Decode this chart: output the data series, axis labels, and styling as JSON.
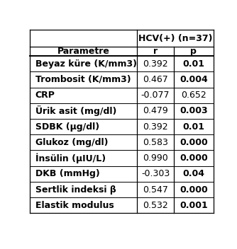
{
  "title_line1": "HCV(+) (n=37)",
  "rows": [
    {
      "param": "Beyaz küre (K/mm3)",
      "r": "0.392",
      "p": "0.01",
      "p_bold": true
    },
    {
      "param": "Trombosit (K/mm3)",
      "r": "0.467",
      "p": "0.004",
      "p_bold": true
    },
    {
      "param": "CRP",
      "r": "-0.077",
      "p": "0.652",
      "p_bold": false
    },
    {
      "param": "Ürik asit (mg/dl)",
      "r": "0.479",
      "p": "0.003",
      "p_bold": true
    },
    {
      "param": "SDBK (µg/dl)",
      "r": "0.392",
      "p": "0.01",
      "p_bold": true
    },
    {
      "param": "Glukoz (mg/dl)",
      "r": "0.583",
      "p": "0.000",
      "p_bold": true
    },
    {
      "param": "İnsülin (µIU/L)",
      "r": "0.990",
      "p": "0.000",
      "p_bold": true
    },
    {
      "param": "DKB (mmHg)",
      "r": "-0.303",
      "p": "0.04",
      "p_bold": true
    },
    {
      "param": "Sertlik indeksi β",
      "r": "0.547",
      "p": "0.000",
      "p_bold": true
    },
    {
      "param": "Elastik modulus",
      "r": "0.532",
      "p": "0.001",
      "p_bold": true
    }
  ],
  "bg_color": "#ffffff",
  "text_color": "#000000",
  "font_size": 9,
  "header_font_size": 9,
  "col_split": 0.585,
  "col_p_split": 0.785
}
